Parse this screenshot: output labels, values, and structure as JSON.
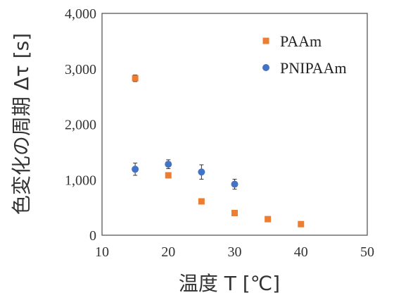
{
  "chart_data": {
    "type": "scatter",
    "xlabel": "温度 T [℃]",
    "ylabel": "色変化の周期 Δτ [s]",
    "xlim": [
      10,
      50
    ],
    "ylim": [
      0,
      4000
    ],
    "xticks": [
      "10",
      "20",
      "30",
      "40",
      "50"
    ],
    "yticks": [
      "0",
      "1,000",
      "2,000",
      "3,000",
      "4,000"
    ],
    "grid": false,
    "legend_position": "top-right",
    "series": [
      {
        "name": "PAAm",
        "color": "#ED7D31",
        "marker": "square",
        "x": [
          15,
          20,
          25,
          30,
          35,
          40
        ],
        "y": [
          2830,
          1080,
          610,
          400,
          290,
          200
        ],
        "err": [
          60,
          30,
          20,
          15,
          15,
          10
        ]
      },
      {
        "name": "PNIPAAm",
        "color": "#4472C4",
        "marker": "circle",
        "x": [
          15,
          20,
          25,
          30
        ],
        "y": [
          1190,
          1280,
          1140,
          920
        ],
        "err": [
          110,
          80,
          130,
          90
        ]
      }
    ]
  }
}
